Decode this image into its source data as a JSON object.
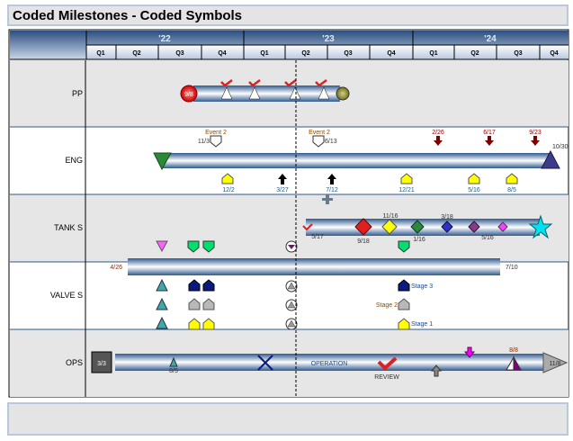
{
  "title": "Coded Milestones - Coded Symbols",
  "years": [
    "'22",
    "'23",
    "'24"
  ],
  "quarters": [
    "Q1",
    "Q2",
    "Q3",
    "Q4",
    "Q1",
    "Q2",
    "Q3",
    "Q4",
    "Q1",
    "Q2",
    "Q3",
    "Q4"
  ],
  "rows": [
    "PP",
    "ENG",
    "TANK S",
    "VALVE S",
    "OPS"
  ],
  "pp": {
    "start": "9/8"
  },
  "eng": {
    "event1": "Event 2",
    "event1_date": "11/3",
    "event2": "Event 2",
    "event2_date": "6/13",
    "arrows": [
      "2/26",
      "6/17",
      "9/23"
    ],
    "end": "10/30",
    "below": [
      "12/2",
      "3/27",
      "7/12",
      "12/21",
      "5/16",
      "8/5"
    ]
  },
  "tank": {
    "start": "5/17",
    "d1": "9/18",
    "d2": "11/16",
    "d3": "1/16",
    "d4": "3/18",
    "d5": "5/16"
  },
  "valve": {
    "start": "4/26",
    "end": "7/10",
    "stage3": "Stage 3",
    "stage2": "Stage 2",
    "stage1": "Stage 1"
  },
  "ops": {
    "start": "3/3",
    "m1": "8/5",
    "operation": "OPERATION",
    "review": "REVIEW",
    "m2": "8/8",
    "end": "11/8"
  },
  "colors": {
    "header": "#2f5a8f",
    "bar": "#4a6f9f",
    "accent_red": "#e02020",
    "dark_red": "#7a0000",
    "yellow": "#ffff00",
    "green": "#00e070"
  }
}
